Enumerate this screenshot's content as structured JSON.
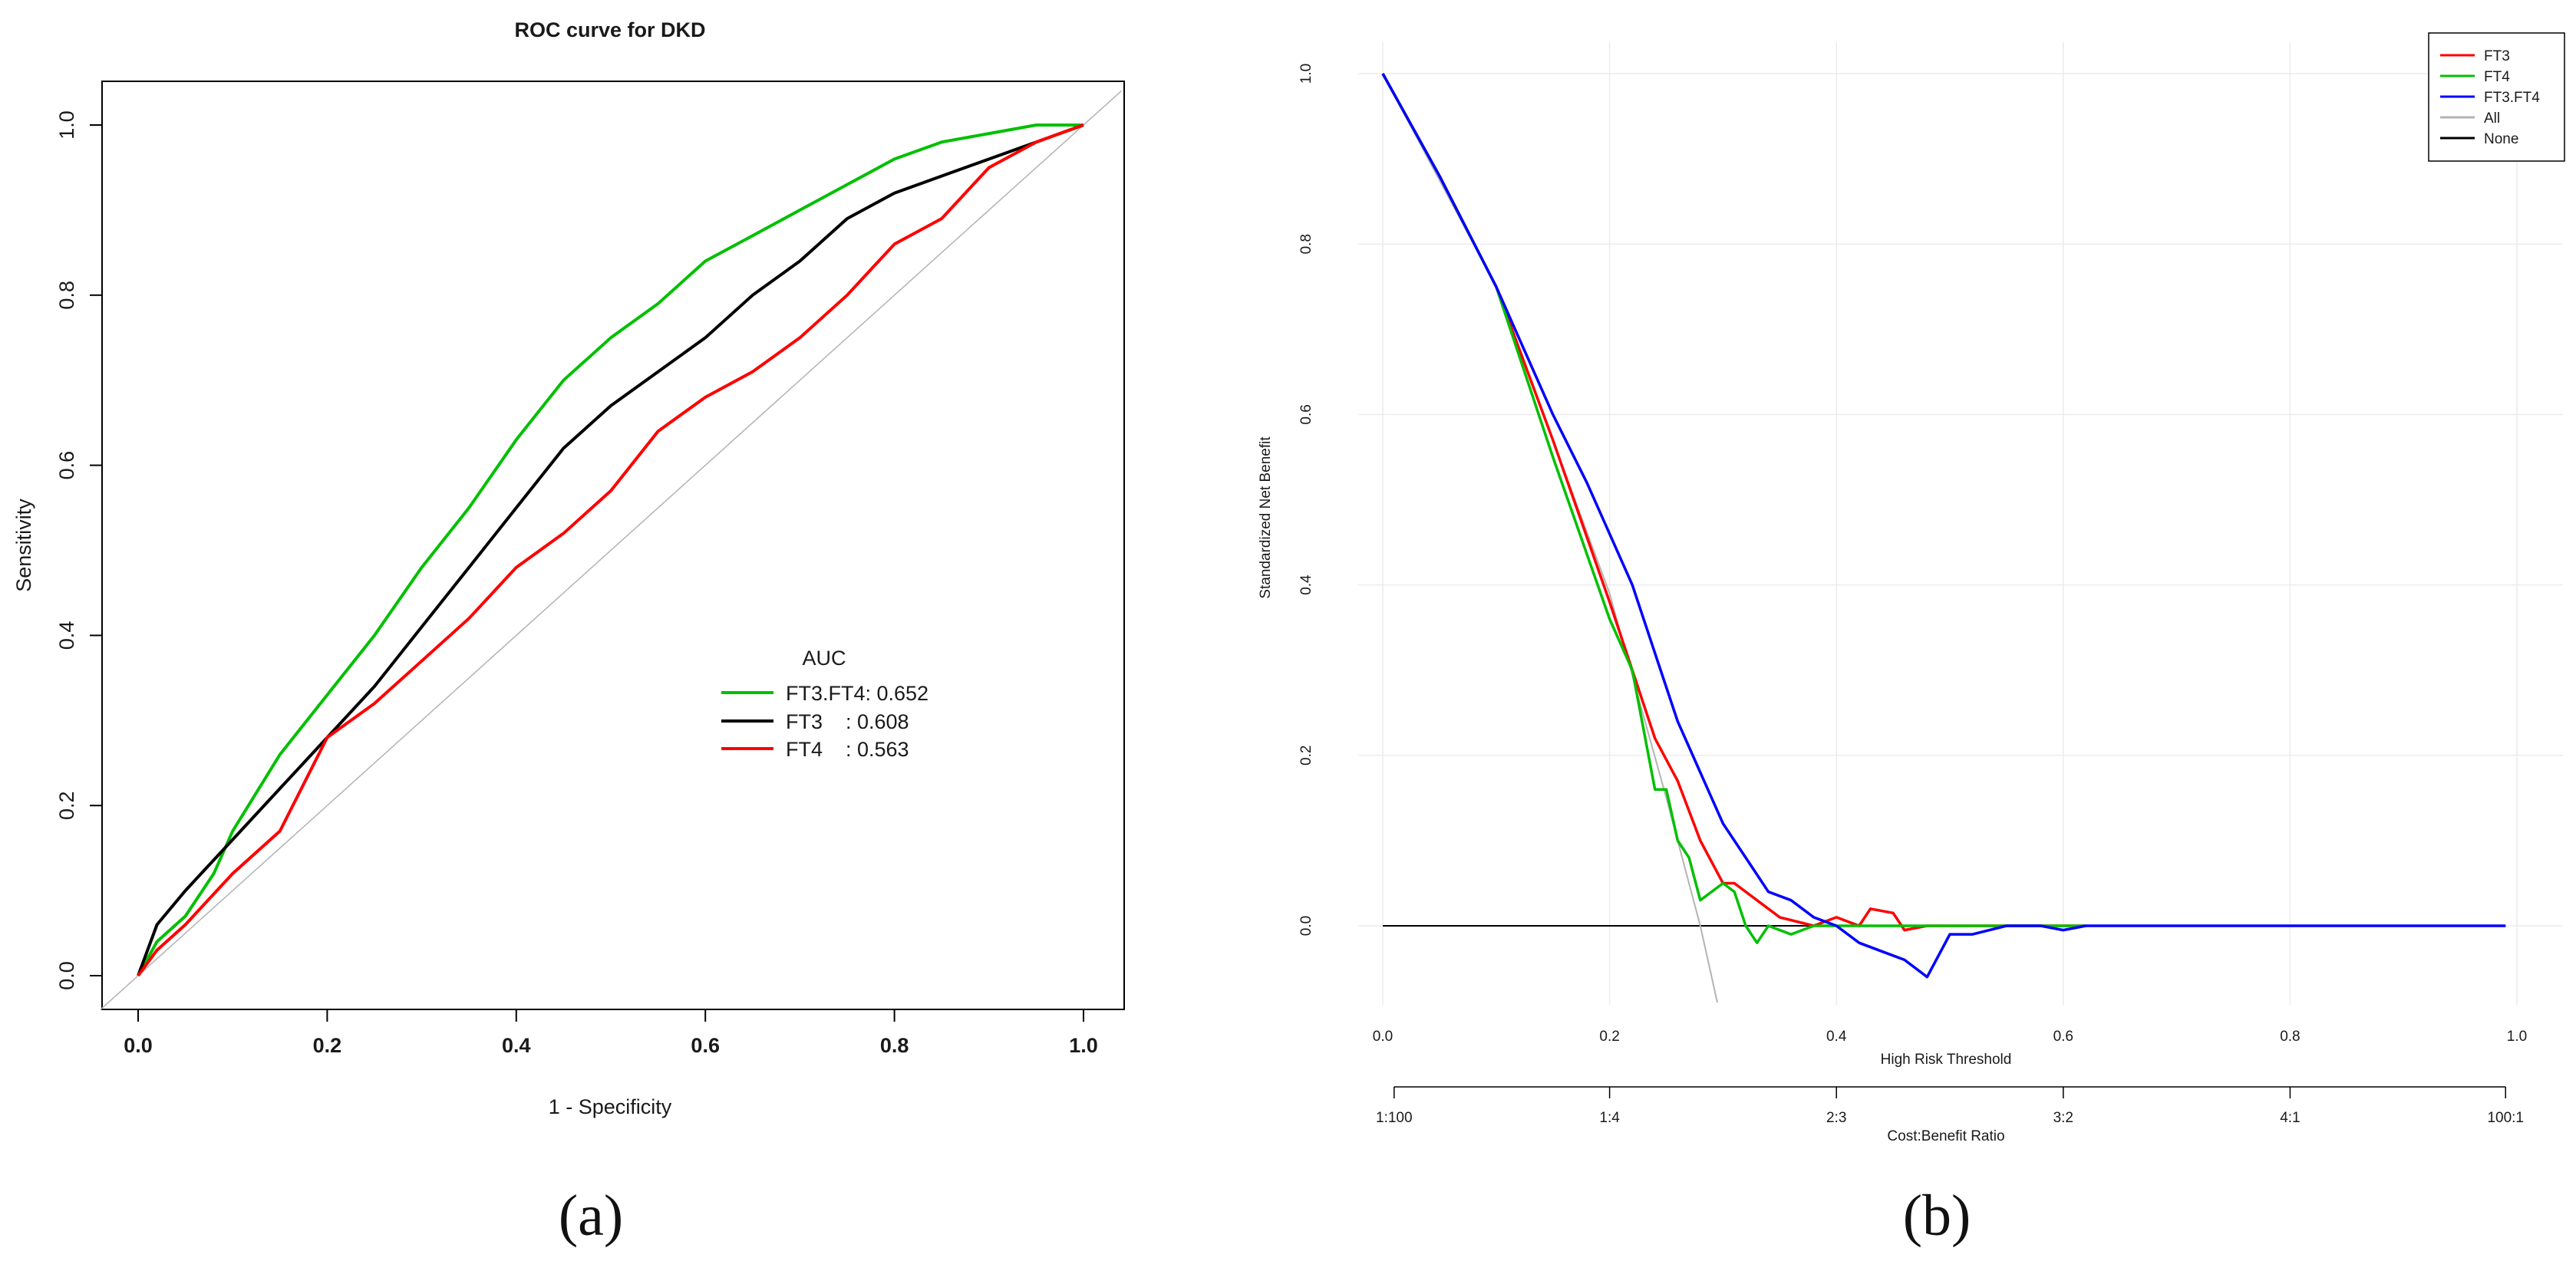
{
  "panel_labels": {
    "a": "(a)",
    "b": "(b)"
  },
  "chart_data": [
    {
      "type": "line",
      "title": "ROC curve for DKD",
      "xlabel": "1 - Specificity",
      "ylabel": "Sensitivity",
      "xlim": [
        0,
        1
      ],
      "ylim": [
        0,
        1
      ],
      "xticks": [
        "0.0",
        "0.2",
        "0.4",
        "0.6",
        "0.8",
        "1.0"
      ],
      "yticks": [
        "0.0",
        "0.2",
        "0.4",
        "0.6",
        "0.8",
        "1.0"
      ],
      "legend": {
        "title": "AUC",
        "entries": [
          {
            "label": "FT3.FT4: 0.652",
            "color": "#00c000"
          },
          {
            "label": "FT3    : 0.608",
            "color": "#000000"
          },
          {
            "label": "FT4    : 0.563",
            "color": "#ff0000"
          }
        ]
      },
      "series": [
        {
          "name": "reference",
          "color": "#b3b3b3",
          "x": [
            -0.04,
            1.04
          ],
          "y": [
            -0.04,
            1.04
          ]
        },
        {
          "name": "FT3.FT4",
          "color": "#00c000",
          "x": [
            0,
            0.02,
            0.05,
            0.08,
            0.1,
            0.15,
            0.2,
            0.25,
            0.3,
            0.35,
            0.4,
            0.45,
            0.5,
            0.55,
            0.6,
            0.65,
            0.7,
            0.75,
            0.8,
            0.85,
            0.9,
            0.95,
            1.0
          ],
          "y": [
            0,
            0.04,
            0.07,
            0.12,
            0.17,
            0.26,
            0.33,
            0.4,
            0.48,
            0.55,
            0.63,
            0.7,
            0.75,
            0.79,
            0.84,
            0.87,
            0.9,
            0.93,
            0.96,
            0.98,
            0.99,
            1.0,
            1.0
          ]
        },
        {
          "name": "FT3",
          "color": "#000000",
          "x": [
            0,
            0.02,
            0.05,
            0.1,
            0.15,
            0.2,
            0.25,
            0.3,
            0.35,
            0.4,
            0.45,
            0.5,
            0.55,
            0.6,
            0.65,
            0.7,
            0.75,
            0.8,
            0.85,
            0.9,
            0.95,
            1.0
          ],
          "y": [
            0,
            0.06,
            0.1,
            0.16,
            0.22,
            0.28,
            0.34,
            0.41,
            0.48,
            0.55,
            0.62,
            0.67,
            0.71,
            0.75,
            0.8,
            0.84,
            0.89,
            0.92,
            0.94,
            0.96,
            0.98,
            1.0
          ]
        },
        {
          "name": "FT4",
          "color": "#ff0000",
          "x": [
            0,
            0.02,
            0.05,
            0.1,
            0.15,
            0.2,
            0.25,
            0.3,
            0.35,
            0.4,
            0.45,
            0.5,
            0.55,
            0.6,
            0.65,
            0.7,
            0.75,
            0.8,
            0.85,
            0.9,
            0.95,
            1.0
          ],
          "y": [
            0,
            0.03,
            0.06,
            0.12,
            0.17,
            0.28,
            0.32,
            0.37,
            0.42,
            0.48,
            0.52,
            0.57,
            0.64,
            0.68,
            0.71,
            0.75,
            0.8,
            0.86,
            0.89,
            0.95,
            0.98,
            1.0
          ]
        }
      ]
    },
    {
      "type": "line",
      "title": "",
      "xlabel": "High Risk Threshold",
      "ylabel": "Standardized Net Benefit",
      "secondary_xlabel": "Cost:Benefit Ratio",
      "xlim": [
        0,
        1
      ],
      "ylim": [
        -0.1,
        1.0
      ],
      "xticks": [
        "0.0",
        "0.2",
        "0.4",
        "0.6",
        "0.8",
        "1.0"
      ],
      "yticks": [
        "0.0",
        "0.2",
        "0.4",
        "0.6",
        "0.8",
        "1.0"
      ],
      "secondary_xticks": [
        {
          "x": 0.01,
          "label": "1:100"
        },
        {
          "x": 0.2,
          "label": "1:4"
        },
        {
          "x": 0.4,
          "label": "2:3"
        },
        {
          "x": 0.6,
          "label": "3:2"
        },
        {
          "x": 0.8,
          "label": "4:1"
        },
        {
          "x": 0.99,
          "label": "100:1"
        }
      ],
      "legend": {
        "entries": [
          {
            "label": "FT3",
            "color": "#ff0000"
          },
          {
            "label": "FT4",
            "color": "#00c000"
          },
          {
            "label": "FT3.FT4",
            "color": "#0000ff"
          },
          {
            "label": "All",
            "color": "#b3b3b3"
          },
          {
            "label": "None",
            "color": "#000000"
          }
        ]
      },
      "series": [
        {
          "name": "None",
          "color": "#000000",
          "x": [
            0,
            0.99
          ],
          "y": [
            0,
            0
          ]
        },
        {
          "name": "All",
          "color": "#b3b3b3",
          "x": [
            0,
            0.1,
            0.2,
            0.25,
            0.28,
            0.295
          ],
          "y": [
            1.0,
            0.75,
            0.39,
            0.15,
            0.0,
            -0.09
          ]
        },
        {
          "name": "FT3",
          "color": "#ff0000",
          "x": [
            0,
            0.05,
            0.1,
            0.15,
            0.2,
            0.22,
            0.24,
            0.26,
            0.28,
            0.3,
            0.31,
            0.33,
            0.35,
            0.38,
            0.4,
            0.42,
            0.43,
            0.45,
            0.46,
            0.48,
            0.5,
            0.55,
            0.6,
            0.62
          ],
          "y": [
            1.0,
            0.88,
            0.75,
            0.57,
            0.38,
            0.3,
            0.22,
            0.17,
            0.1,
            0.05,
            0.05,
            0.03,
            0.01,
            0.0,
            0.01,
            0.0,
            0.02,
            0.015,
            -0.005,
            0.0,
            0.0,
            0.0,
            0.0,
            0.0
          ]
        },
        {
          "name": "FT4",
          "color": "#00c000",
          "x": [
            0,
            0.05,
            0.1,
            0.15,
            0.2,
            0.22,
            0.24,
            0.25,
            0.26,
            0.27,
            0.28,
            0.3,
            0.31,
            0.32,
            0.33,
            0.34,
            0.36,
            0.38,
            0.4,
            0.45,
            0.5,
            0.55,
            0.62
          ],
          "y": [
            1.0,
            0.88,
            0.75,
            0.55,
            0.36,
            0.3,
            0.16,
            0.16,
            0.1,
            0.08,
            0.03,
            0.05,
            0.04,
            0.0,
            -0.02,
            0.0,
            -0.01,
            0.0,
            0.0,
            0.0,
            0.0,
            0.0,
            0.0
          ]
        },
        {
          "name": "FT3.FT4",
          "color": "#0000ff",
          "x": [
            0,
            0.05,
            0.1,
            0.15,
            0.18,
            0.2,
            0.22,
            0.24,
            0.26,
            0.28,
            0.3,
            0.32,
            0.34,
            0.36,
            0.38,
            0.4,
            0.42,
            0.44,
            0.46,
            0.48,
            0.5,
            0.52,
            0.55,
            0.58,
            0.6,
            0.62,
            0.7,
            0.8,
            0.9,
            0.99
          ],
          "y": [
            1.0,
            0.88,
            0.75,
            0.6,
            0.52,
            0.46,
            0.4,
            0.32,
            0.24,
            0.18,
            0.12,
            0.08,
            0.04,
            0.03,
            0.01,
            0.0,
            -0.02,
            -0.03,
            -0.04,
            -0.06,
            -0.01,
            -0.01,
            0.0,
            0.0,
            -0.005,
            0.0,
            0.0,
            0.0,
            0.0,
            0.0
          ]
        }
      ]
    }
  ]
}
